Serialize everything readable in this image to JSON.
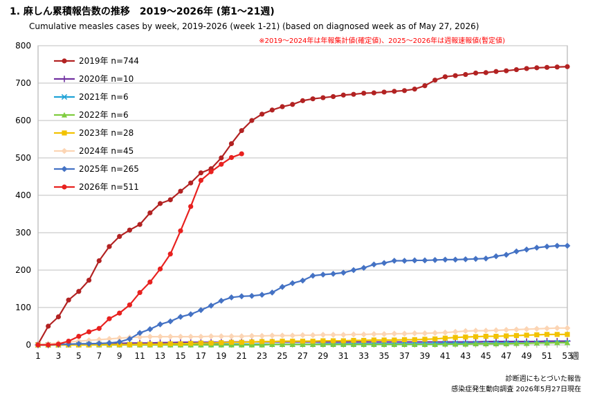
{
  "header": {
    "title": "1. 麻しん累積報告数の推移　2019～2026年 (第1～21週)",
    "subtitle": "Cumulative measles cases by week, 2019-2026 (week 1-21)  (based on diagnosed week as of May 27, 2026)"
  },
  "chart_data": {
    "type": "line",
    "note": "※2019～2024年は年報集計値(確定値)、2025～2026年は週報速報値(暫定値)",
    "note_color": "#ff0000",
    "xlabel": "週",
    "ylim": [
      0,
      800
    ],
    "xlim": [
      1,
      53
    ],
    "yticks": [
      0,
      100,
      200,
      300,
      400,
      500,
      600,
      700,
      800
    ],
    "xticks": [
      1,
      3,
      5,
      7,
      9,
      11,
      13,
      15,
      17,
      19,
      21,
      23,
      25,
      27,
      29,
      31,
      33,
      35,
      37,
      39,
      41,
      43,
      45,
      47,
      49,
      51,
      53
    ],
    "grid": true,
    "legend_position": "top-left",
    "series": [
      {
        "name": "2019年 n=744",
        "color": "#b22222",
        "marker": "circle",
        "values": [
          2,
          50,
          75,
          120,
          143,
          173,
          225,
          263,
          290,
          307,
          322,
          353,
          378,
          388,
          411,
          433,
          460,
          471,
          500,
          538,
          573,
          600,
          617,
          628,
          637,
          643,
          653,
          658,
          661,
          664,
          668,
          670,
          673,
          674,
          676,
          678,
          680,
          684,
          693,
          708,
          717,
          720,
          723,
          727,
          728,
          731,
          733,
          736,
          739,
          741,
          742,
          743,
          744
        ]
      },
      {
        "name": "2020年 n=10",
        "color": "#7030a0",
        "marker": "plus",
        "values": [
          0,
          0,
          1,
          2,
          2,
          3,
          3,
          4,
          4,
          5,
          5,
          5,
          6,
          6,
          7,
          7,
          7,
          7,
          7,
          8,
          8,
          8,
          8,
          8,
          8,
          8,
          8,
          8,
          8,
          8,
          8,
          8,
          8,
          8,
          8,
          8,
          8,
          8,
          8,
          8,
          8,
          8,
          8,
          8,
          9,
          9,
          9,
          9,
          9,
          9,
          10,
          10,
          10
        ]
      },
      {
        "name": "2021年 n=6",
        "color": "#1fa2d6",
        "marker": "x",
        "values": [
          0,
          0,
          0,
          0,
          1,
          1,
          1,
          1,
          1,
          1,
          1,
          1,
          1,
          1,
          1,
          1,
          1,
          2,
          2,
          2,
          2,
          2,
          2,
          2,
          2,
          2,
          2,
          2,
          3,
          3,
          3,
          3,
          3,
          3,
          3,
          3,
          3,
          3,
          3,
          3,
          4,
          4,
          4,
          4,
          4,
          5,
          5,
          5,
          5,
          5,
          6,
          6,
          6
        ]
      },
      {
        "name": "2022年 n=6",
        "color": "#7fcc3f",
        "marker": "triangle",
        "values": [
          0,
          0,
          0,
          0,
          0,
          0,
          0,
          0,
          0,
          0,
          0,
          0,
          0,
          0,
          0,
          0,
          0,
          0,
          0,
          0,
          0,
          0,
          0,
          1,
          1,
          1,
          1,
          1,
          1,
          1,
          1,
          1,
          1,
          1,
          1,
          1,
          1,
          1,
          1,
          1,
          2,
          2,
          2,
          3,
          3,
          3,
          3,
          4,
          4,
          5,
          5,
          6,
          6
        ]
      },
      {
        "name": "2023年 n=28",
        "color": "#f2c200",
        "marker": "square",
        "values": [
          0,
          0,
          0,
          0,
          0,
          0,
          1,
          1,
          1,
          1,
          2,
          2,
          2,
          3,
          3,
          4,
          5,
          5,
          6,
          7,
          7,
          8,
          9,
          9,
          10,
          10,
          10,
          10,
          11,
          11,
          11,
          12,
          12,
          13,
          13,
          13,
          14,
          14,
          15,
          16,
          18,
          20,
          21,
          22,
          23,
          23,
          24,
          25,
          26,
          27,
          28,
          28,
          28
        ]
      },
      {
        "name": "2024年 n=45",
        "color": "#fcd5b4",
        "marker": "diamond",
        "values": [
          1,
          3,
          5,
          8,
          10,
          12,
          14,
          16,
          18,
          20,
          21,
          22,
          22,
          22,
          22,
          22,
          22,
          23,
          23,
          23,
          23,
          24,
          24,
          25,
          25,
          25,
          26,
          26,
          27,
          27,
          27,
          28,
          28,
          29,
          29,
          30,
          30,
          31,
          31,
          32,
          33,
          35,
          37,
          38,
          38,
          39,
          40,
          41,
          42,
          43,
          44,
          45,
          45
        ]
      },
      {
        "name": "2025年 n=265",
        "color": "#4472c4",
        "marker": "diamond",
        "values": [
          0,
          0,
          1,
          2,
          3,
          3,
          4,
          5,
          8,
          16,
          32,
          42,
          55,
          63,
          75,
          82,
          93,
          105,
          118,
          127,
          130,
          131,
          134,
          140,
          155,
          165,
          172,
          185,
          188,
          190,
          193,
          200,
          206,
          215,
          219,
          225,
          225,
          226,
          226,
          227,
          228,
          228,
          229,
          230,
          231,
          237,
          241,
          250,
          255,
          260,
          263,
          265,
          265
        ]
      },
      {
        "name": "2026年 n=511",
        "color": "#e8211f",
        "marker": "circle",
        "values": [
          0,
          0,
          2,
          10,
          23,
          35,
          44,
          70,
          85,
          107,
          140,
          168,
          203,
          243,
          305,
          370,
          440,
          463,
          483,
          501,
          511
        ]
      }
    ]
  },
  "footer": {
    "line1": "診断週にもとづいた報告",
    "line2": "感染症発生動向調査 2026年5月27日現在"
  }
}
